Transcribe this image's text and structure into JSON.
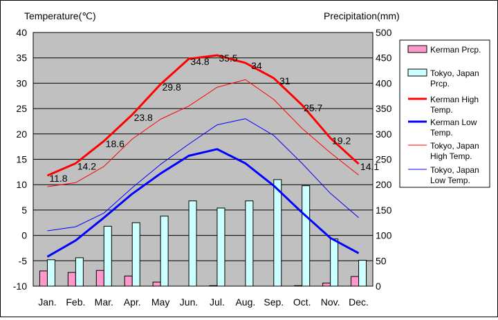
{
  "chart_data": {
    "type": "bar+line",
    "left_axis_title": "Temperature(℃)",
    "right_axis_title": "Precipitation(mm)",
    "months": [
      "Jan.",
      "Feb.",
      "Mar.",
      "Apr.",
      "May",
      "Jun.",
      "Jul.",
      "Aug.",
      "Sep.",
      "Oct.",
      "Nov.",
      "Dec."
    ],
    "temp_ylim": [
      -10,
      40
    ],
    "temp_ticks": [
      40,
      35,
      30,
      25,
      20,
      15,
      10,
      5,
      0,
      -5,
      -10
    ],
    "prcp_ylim": [
      0,
      500
    ],
    "prcp_ticks": [
      500,
      450,
      400,
      350,
      300,
      250,
      200,
      150,
      100,
      50,
      0
    ],
    "grid": true,
    "plot_background": "#c0c0c0",
    "legend_position": "right",
    "series": [
      {
        "name": "Kerman Prcp.",
        "kind": "bar",
        "axis": "right",
        "color": "#ff99cc",
        "values": [
          30,
          27,
          31,
          20,
          8,
          0,
          1,
          0,
          0,
          1,
          6,
          19
        ]
      },
      {
        "name": "Tokyo, Japan Prcp.",
        "kind": "bar",
        "axis": "right",
        "color": "#ccffff",
        "values": [
          52,
          56,
          118,
          125,
          138,
          168,
          154,
          168,
          210,
          198,
          93,
          51
        ]
      },
      {
        "name": "Kerman High Temp.",
        "kind": "line",
        "axis": "left",
        "color": "#ff0000",
        "width": 3,
        "values": [
          11.8,
          14.2,
          18.6,
          23.8,
          29.8,
          34.8,
          35.5,
          34,
          31,
          25.7,
          19.2,
          14.1
        ],
        "labels": [
          "11.8",
          "14.2",
          "18.6",
          "23.8",
          "29.8",
          "34.8",
          "35.5",
          "34",
          "31",
          "25.7",
          "19.2",
          "14.1"
        ]
      },
      {
        "name": "Kerman Low Temp.",
        "kind": "line",
        "axis": "left",
        "color": "#0000ff",
        "width": 3,
        "values": [
          -4.2,
          -1,
          3.5,
          8.2,
          12.2,
          15.7,
          17,
          14.2,
          9.8,
          4.5,
          -0.5,
          -3.5
        ]
      },
      {
        "name": "Tokyo, Japan High Temp.",
        "kind": "line",
        "axis": "left",
        "color": "#ff0000",
        "width": 1,
        "values": [
          9.6,
          10.4,
          13.6,
          19,
          22.9,
          25.5,
          29.2,
          30.7,
          26.8,
          21.1,
          16.3,
          11.9
        ]
      },
      {
        "name": "Tokyo, Japan Low Temp.",
        "kind": "line",
        "axis": "left",
        "color": "#0000ff",
        "width": 1,
        "values": [
          0.9,
          1.7,
          4.4,
          9.4,
          14,
          18,
          21.8,
          23,
          19.7,
          14.2,
          8.3,
          3.5
        ]
      }
    ]
  }
}
